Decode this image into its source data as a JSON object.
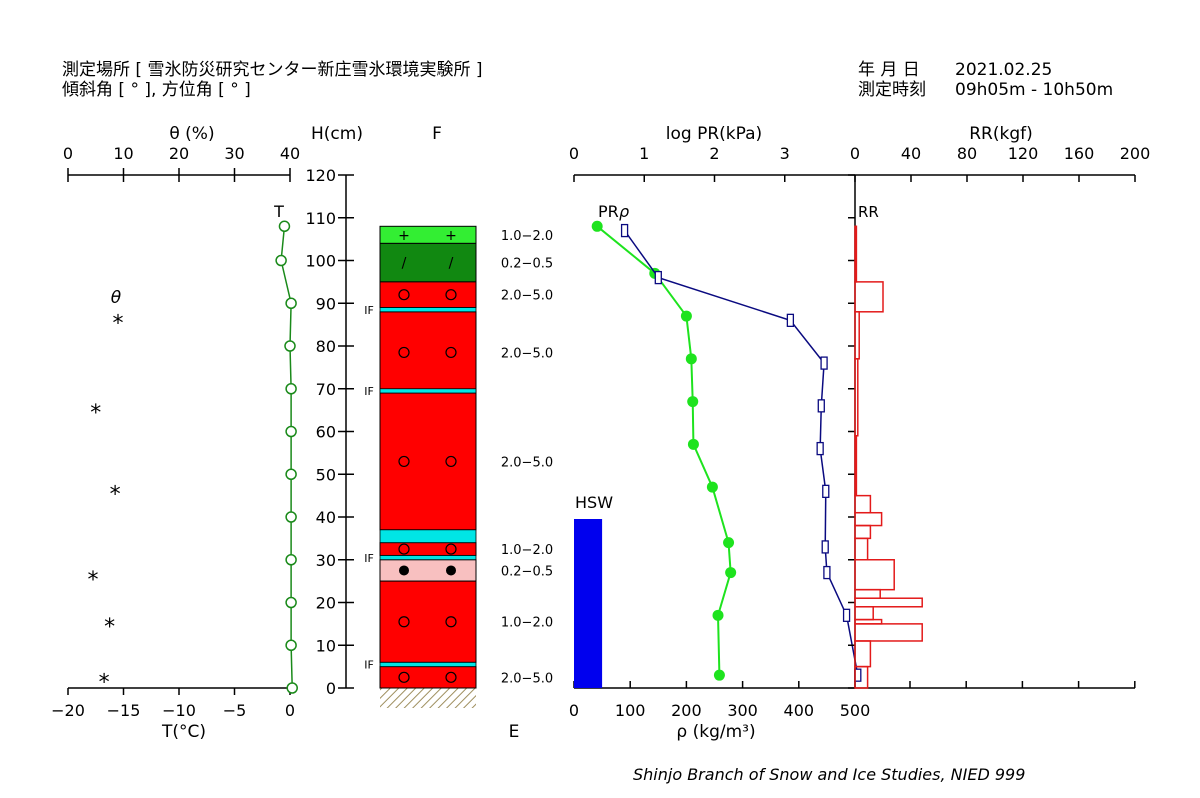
{
  "header": {
    "site_label": "測定場所 [ 雪氷防災研究センター新庄雪氷環境実験所 ]",
    "angle_label": "傾斜角 [ ° ], 方位角 [ ° ]",
    "date_label": "年 月 日",
    "date_value": "2021.02.25",
    "time_label": "測定時刻",
    "time_value": "09h05m - 10h50m"
  },
  "credit": "Shinjo Branch of Snow and Ice Studies, NIED 999",
  "colors": {
    "temperature": "#1a8a1a",
    "pr": "#1ee31e",
    "density": "#0a0a80",
    "rr": "#e31a1a",
    "hsw": "#0000ee",
    "ice": "#00e5e5",
    "rounded": "#ff0000",
    "new_snow": "#33ee33",
    "fragments": "#118811",
    "wet": "#f8c0c0",
    "ground": "#a09060"
  },
  "chart_data": [
    {
      "type": "line",
      "name_id": "water-content-temperature",
      "top_axis_label": "θ (%)",
      "top_ticks": [
        "0",
        "10",
        "20",
        "30",
        "40"
      ],
      "top_range": [
        0,
        40
      ],
      "bottom_axis_label": "T(°C)",
      "bottom_ticks": [
        "−20",
        "−15",
        "−10",
        "−5",
        "0"
      ],
      "bottom_range": [
        -20,
        0
      ],
      "theta_marker_label": "θ",
      "temp_marker_label": "T",
      "temperature": {
        "h": [
          108,
          100,
          90,
          80,
          70,
          60,
          50,
          40,
          30,
          20,
          10,
          0
        ],
        "t": [
          -0.5,
          -0.8,
          0.1,
          0.0,
          0.1,
          0.1,
          0.1,
          0.1,
          0.1,
          0.1,
          0.1,
          0.2
        ]
      },
      "theta": {
        "h": [
          86,
          65,
          46,
          26,
          15,
          2
        ],
        "v": [
          9,
          5,
          8.5,
          4.5,
          7.5,
          6.5
        ]
      }
    },
    {
      "type": "table",
      "name_id": "stratigraphy",
      "height_axis_label": "H(cm)",
      "height_ticks": [
        "0",
        "10",
        "20",
        "30",
        "40",
        "50",
        "60",
        "70",
        "80",
        "90",
        "100",
        "110",
        "120"
      ],
      "height_range": [
        0,
        120
      ],
      "column_label": "F",
      "bottom_label": "E",
      "layers": [
        {
          "bottom": 104,
          "top": 108,
          "kind": "new_snow",
          "symbol": "+",
          "size": "1.0−2.0"
        },
        {
          "bottom": 95,
          "top": 104,
          "kind": "fragments",
          "symbol": "/",
          "size": "0.2−0.5"
        },
        {
          "bottom": 89,
          "top": 95,
          "kind": "rounded",
          "symbol": "o",
          "size": "2.0−5.0"
        },
        {
          "bottom": 69,
          "top": 88,
          "kind": "rounded",
          "symbol": "o",
          "size": "2.0−5.0"
        },
        {
          "bottom": 37,
          "top": 69,
          "kind": "rounded",
          "symbol": "o",
          "size": "2.0−5.0"
        },
        {
          "bottom": 31,
          "top": 34,
          "kind": "rounded",
          "symbol": "o",
          "size": "1.0−2.0"
        },
        {
          "bottom": 25,
          "top": 30,
          "kind": "wet",
          "symbol": "•",
          "size": "0.2−0.5"
        },
        {
          "bottom": 6,
          "top": 25,
          "kind": "rounded",
          "symbol": "o",
          "size": "1.0−2.0"
        },
        {
          "bottom": 0,
          "top": 5,
          "kind": "rounded",
          "symbol": "o",
          "size": "2.0−5.0"
        }
      ],
      "ice_layers": [
        {
          "bottom": 88,
          "top": 89,
          "label": "IF"
        },
        {
          "bottom": 69,
          "top": 70,
          "label": "IF"
        },
        {
          "bottom": 34,
          "top": 37,
          "label": ""
        },
        {
          "bottom": 30,
          "top": 31,
          "label": "IF"
        },
        {
          "bottom": 5,
          "top": 6,
          "label": "IF"
        }
      ]
    },
    {
      "type": "line",
      "name_id": "pr-density",
      "top_axis_label": "log PR(kPa)",
      "top_ticks": [
        "0",
        "1",
        "2",
        "3"
      ],
      "top_range": [
        0,
        4
      ],
      "bottom_axis_label": "ρ (kg/m³)",
      "bottom_ticks": [
        "0",
        "100",
        "200",
        "300",
        "400",
        "500"
      ],
      "bottom_range": [
        0,
        500
      ],
      "pr_label": "PR",
      "rho_label": "ρ",
      "hsw_label": "HSW",
      "hsw_value": 50,
      "pr": {
        "h": [
          108,
          97,
          87,
          77,
          67,
          57,
          47,
          34,
          27,
          17,
          3
        ],
        "v": [
          0.33,
          1.15,
          1.6,
          1.67,
          1.69,
          1.7,
          1.97,
          2.2,
          2.23,
          2.05,
          2.07
        ]
      },
      "density": {
        "h": [
          107,
          96,
          86,
          76,
          66,
          56,
          46,
          33,
          27,
          17,
          3
        ],
        "v": [
          90,
          150,
          385,
          445,
          440,
          438,
          448,
          447,
          450,
          485,
          505
        ]
      }
    },
    {
      "type": "bar",
      "name_id": "ram-resistance",
      "top_axis_label": "RR(kgf)",
      "top_ticks": [
        "0",
        "40",
        "80",
        "120",
        "160",
        "200"
      ],
      "top_range": [
        0,
        200
      ],
      "rr_label": "RR",
      "intervals": [
        {
          "bottom": 95,
          "top": 108,
          "v": 1
        },
        {
          "bottom": 88,
          "top": 95,
          "v": 20
        },
        {
          "bottom": 77,
          "top": 88,
          "v": 3
        },
        {
          "bottom": 59,
          "top": 77,
          "v": 2
        },
        {
          "bottom": 45,
          "top": 59,
          "v": 1
        },
        {
          "bottom": 41,
          "top": 45,
          "v": 11
        },
        {
          "bottom": 38,
          "top": 41,
          "v": 19
        },
        {
          "bottom": 35,
          "top": 38,
          "v": 11
        },
        {
          "bottom": 30,
          "top": 35,
          "v": 9
        },
        {
          "bottom": 23,
          "top": 30,
          "v": 28
        },
        {
          "bottom": 21,
          "top": 23,
          "v": 18
        },
        {
          "bottom": 19,
          "top": 21,
          "v": 48
        },
        {
          "bottom": 16,
          "top": 19,
          "v": 13
        },
        {
          "bottom": 15,
          "top": 16,
          "v": 19
        },
        {
          "bottom": 11,
          "top": 15,
          "v": 48
        },
        {
          "bottom": 5,
          "top": 11,
          "v": 11
        },
        {
          "bottom": 0,
          "top": 5,
          "v": 9
        }
      ]
    }
  ]
}
